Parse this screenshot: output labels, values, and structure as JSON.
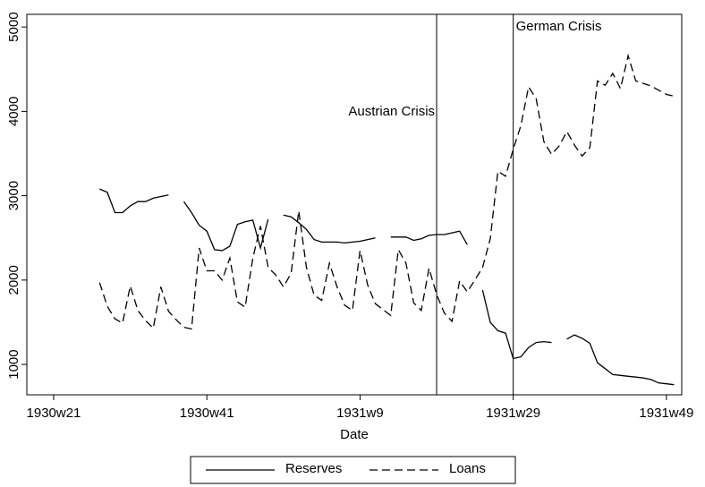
{
  "chart_data": {
    "type": "line",
    "x_label": "Date",
    "x": [
      27,
      28,
      29,
      30,
      31,
      32,
      33,
      34,
      35,
      36,
      37,
      38,
      39,
      40,
      41,
      42,
      43,
      44,
      45,
      46,
      47,
      48,
      49,
      50,
      51,
      52,
      53,
      54,
      55,
      56,
      57,
      58,
      59,
      60,
      61,
      62,
      63,
      64,
      65,
      66,
      67,
      68,
      69,
      70,
      71,
      72,
      73,
      74,
      75,
      76,
      77,
      78,
      79,
      80,
      81,
      82,
      83,
      84,
      85,
      86,
      87,
      88,
      89,
      90,
      91,
      92,
      93,
      94,
      95,
      96,
      97,
      98,
      99,
      100,
      101,
      102
    ],
    "series": [
      {
        "name": "Reserves",
        "color": "#000000",
        "dash": "solid",
        "values": [
          3080,
          3040,
          2800,
          2800,
          2880,
          2930,
          2930,
          2970,
          2990,
          3010,
          null,
          2930,
          2800,
          2650,
          2580,
          2360,
          2350,
          2400,
          2660,
          2690,
          2710,
          2380,
          2720,
          null,
          2770,
          2750,
          2680,
          2600,
          2480,
          2450,
          2450,
          2450,
          2440,
          2450,
          2460,
          2480,
          2500,
          null,
          2510,
          2510,
          2510,
          2470,
          2490,
          2530,
          2540,
          2540,
          2560,
          2580,
          2420,
          null,
          1880,
          1500,
          1400,
          1370,
          1070,
          1090,
          1200,
          1260,
          1270,
          1260,
          null,
          1300,
          1350,
          1310,
          1250,
          1020,
          950,
          880,
          870,
          860,
          850,
          840,
          820,
          780,
          770,
          760
        ]
      },
      {
        "name": "Loans",
        "color": "#000000",
        "dash": "dashed",
        "values": [
          1970,
          1690,
          1540,
          1490,
          1930,
          1640,
          1520,
          1430,
          1920,
          1630,
          1530,
          1440,
          1420,
          2380,
          2110,
          2110,
          2000,
          2260,
          1740,
          1680,
          2260,
          2640,
          2150,
          2060,
          1920,
          2080,
          2820,
          2150,
          1820,
          1760,
          2200,
          1920,
          1700,
          1640,
          2350,
          1940,
          1720,
          1650,
          1580,
          2360,
          2200,
          1730,
          1640,
          2140,
          1830,
          1610,
          1510,
          1990,
          1860,
          2000,
          2150,
          2490,
          3290,
          3230,
          3550,
          3830,
          4290,
          4150,
          3640,
          3490,
          3590,
          3760,
          3600,
          3470,
          3570,
          4360,
          4310,
          4450,
          4270,
          4660,
          4360,
          4330,
          4300,
          4250,
          4200,
          4180
        ]
      }
    ],
    "xlim": [
      17.5,
      103
    ],
    "xticks": [
      {
        "value": 21,
        "label": "1930w21"
      },
      {
        "value": 41,
        "label": "1930w41"
      },
      {
        "value": 61,
        "label": "1931w9"
      },
      {
        "value": 81,
        "label": "1931w29"
      },
      {
        "value": 101,
        "label": "1931w49"
      }
    ],
    "ylim": [
      640,
      5150
    ],
    "yticks": [
      1000,
      2000,
      3000,
      4000,
      5000
    ],
    "annotations": [
      {
        "x": 71,
        "label": "Austrian Crisis",
        "side": "left"
      },
      {
        "x": 81,
        "label": "German Crisis",
        "side": "right"
      }
    ],
    "grid": false,
    "legend": "bottom"
  }
}
